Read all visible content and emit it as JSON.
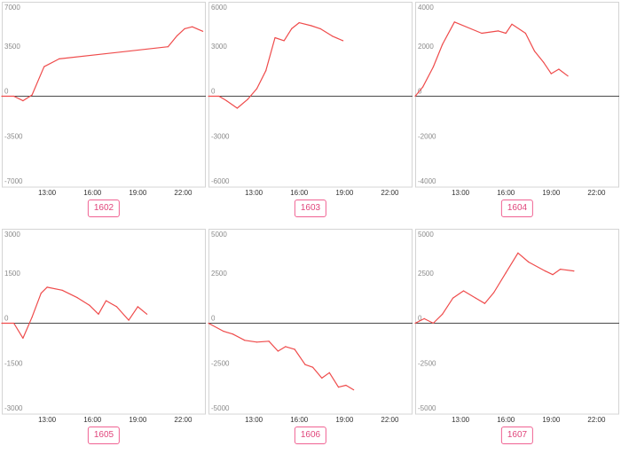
{
  "chart_data": [
    {
      "type": "line",
      "code": "1602",
      "yticks": [
        "7000",
        "3500",
        "0",
        "-3500",
        "-7000"
      ],
      "ytick_values": [
        7000,
        3500,
        0,
        -3500,
        -7000
      ],
      "ylim": [
        -7000,
        7000
      ],
      "xticks": [
        "13:00",
        "16:00",
        "19:00",
        "22:00"
      ],
      "xtick_values": [
        13,
        16,
        19,
        22
      ],
      "xlim": [
        10,
        23.5
      ],
      "series_color": "#ef4b4b",
      "x": [
        10.0,
        10.8,
        11.4,
        12.0,
        12.8,
        13.8,
        21.0,
        21.6,
        22.1,
        22.6,
        23.3
      ],
      "values": [
        0,
        0,
        -350,
        100,
        2300,
        2900,
        3850,
        4700,
        5250,
        5400,
        5050
      ]
    },
    {
      "type": "line",
      "code": "1603",
      "yticks": [
        "6000",
        "3000",
        "0",
        "-3000",
        "-6000"
      ],
      "ytick_values": [
        6000,
        3000,
        0,
        -3000,
        -6000
      ],
      "ylim": [
        -6000,
        6000
      ],
      "xticks": [
        "13:00",
        "16:00",
        "19:00",
        "22:00"
      ],
      "xtick_values": [
        13,
        16,
        19,
        22
      ],
      "xlim": [
        10,
        23.5
      ],
      "series_color": "#ef4b4b",
      "x": [
        10.0,
        10.7,
        11.2,
        11.9,
        12.6,
        13.2,
        13.8,
        14.4,
        15.0,
        15.5,
        16.0,
        16.8,
        17.4,
        18.2,
        18.9
      ],
      "values": [
        0,
        0,
        -300,
        -800,
        -200,
        500,
        1700,
        3900,
        3700,
        4500,
        4900,
        4700,
        4500,
        4000,
        3700
      ]
    },
    {
      "type": "line",
      "code": "1604",
      "yticks": [
        "4000",
        "2000",
        "0",
        "-2000",
        "-4000"
      ],
      "ytick_values": [
        4000,
        2000,
        0,
        -2000,
        -4000
      ],
      "ylim": [
        -4000,
        4000
      ],
      "xticks": [
        "13:00",
        "16:00",
        "19:00",
        "22:00"
      ],
      "xtick_values": [
        13,
        16,
        19,
        22
      ],
      "xlim": [
        10,
        23.5
      ],
      "series_color": "#ef4b4b",
      "x": [
        10.0,
        10.5,
        11.2,
        11.8,
        12.6,
        14.4,
        15.5,
        16.0,
        16.4,
        17.3,
        17.9,
        18.5,
        19.0,
        19.5,
        20.1
      ],
      "values": [
        0,
        400,
        1300,
        2300,
        3300,
        2800,
        2900,
        2800,
        3200,
        2800,
        2000,
        1500,
        1000,
        1200,
        900
      ]
    },
    {
      "type": "line",
      "code": "1605",
      "yticks": [
        "3000",
        "1500",
        "0",
        "-1500",
        "-3000"
      ],
      "ytick_values": [
        3000,
        1500,
        0,
        -1500,
        -3000
      ],
      "ylim": [
        -3000,
        3000
      ],
      "xticks": [
        "13:00",
        "16:00",
        "19:00",
        "22:00"
      ],
      "xtick_values": [
        13,
        16,
        19,
        22
      ],
      "xlim": [
        10,
        23.5
      ],
      "series_color": "#ef4b4b",
      "x": [
        10.0,
        10.8,
        11.4,
        12.0,
        12.6,
        13.0,
        14.0,
        15.0,
        15.8,
        16.4,
        16.9,
        17.6,
        18.4,
        19.0,
        19.6
      ],
      "values": [
        0,
        0,
        -500,
        200,
        1000,
        1200,
        1100,
        850,
        600,
        300,
        750,
        550,
        100,
        550,
        300
      ]
    },
    {
      "type": "line",
      "code": "1606",
      "yticks": [
        "5000",
        "2500",
        "0",
        "-2500",
        "-5000"
      ],
      "ytick_values": [
        5000,
        2500,
        0,
        -2500,
        -5000
      ],
      "ylim": [
        -5000,
        5000
      ],
      "xticks": [
        "13:00",
        "16:00",
        "19:00",
        "22:00"
      ],
      "xtick_values": [
        13,
        16,
        19,
        22
      ],
      "xlim": [
        10,
        23.5
      ],
      "series_color": "#ef4b4b",
      "x": [
        10.0,
        11.0,
        11.6,
        12.4,
        13.2,
        14.0,
        14.6,
        15.1,
        15.7,
        16.4,
        16.9,
        17.5,
        18.0,
        18.6,
        19.1,
        19.6
      ],
      "values": [
        0,
        -450,
        -600,
        -950,
        -1050,
        -1000,
        -1550,
        -1300,
        -1450,
        -2300,
        -2450,
        -3050,
        -2750,
        -3550,
        -3450,
        -3700
      ]
    },
    {
      "type": "line",
      "code": "1607",
      "yticks": [
        "5000",
        "2500",
        "0",
        "-2500",
        "-5000"
      ],
      "ytick_values": [
        5000,
        2500,
        0,
        -2500,
        -5000
      ],
      "ylim": [
        -5000,
        5000
      ],
      "xticks": [
        "13:00",
        "16:00",
        "19:00",
        "22:00"
      ],
      "xtick_values": [
        13,
        16,
        19,
        22
      ],
      "xlim": [
        10,
        23.5
      ],
      "series_color": "#ef4b4b",
      "x": [
        10.0,
        10.6,
        11.2,
        11.8,
        12.5,
        13.2,
        14.0,
        14.6,
        15.2,
        16.0,
        16.8,
        17.5,
        18.6,
        19.1,
        19.6,
        20.5
      ],
      "values": [
        0,
        250,
        0,
        500,
        1400,
        1800,
        1400,
        1100,
        1700,
        2800,
        3900,
        3400,
        2900,
        2700,
        3000,
        2900
      ]
    }
  ]
}
